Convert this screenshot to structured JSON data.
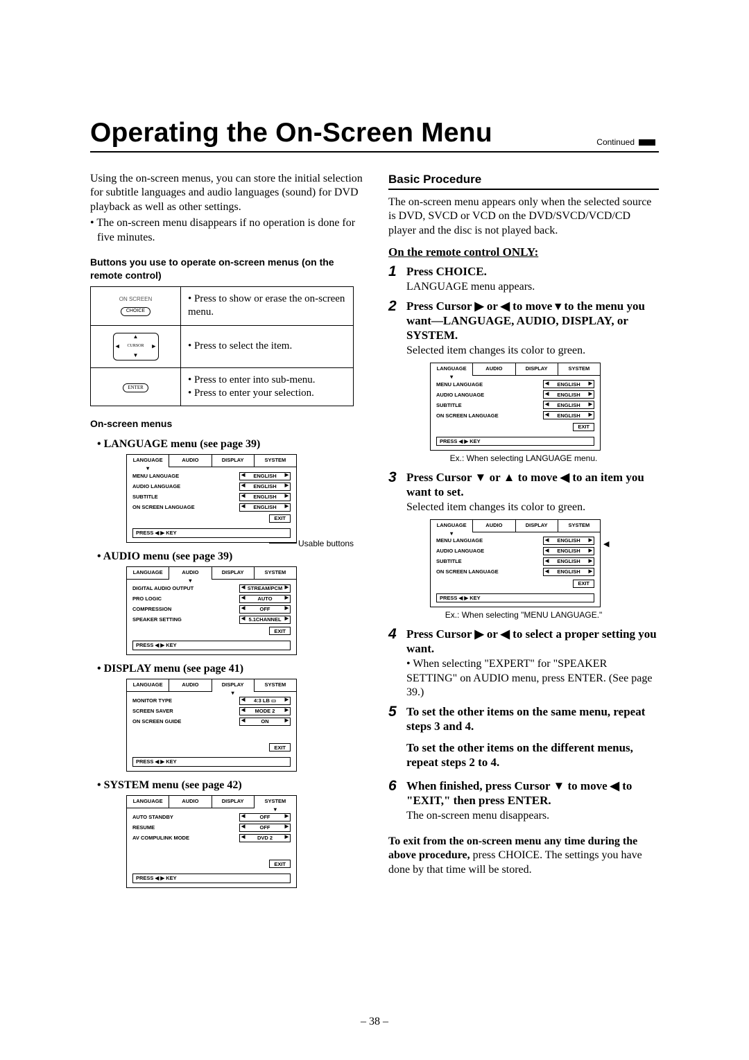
{
  "header": {
    "title": "Operating the On-Screen Menu",
    "continued": "Continued"
  },
  "intro": {
    "p1": "Using the on-screen menus, you can store the initial selection for subtitle languages and audio languages (sound) for DVD playback as well as other settings.",
    "b1": "• The on-screen menu disappears if no operation is done for five minutes."
  },
  "buttons_heading": "Buttons you use to operate on-screen menus (on the remote control)",
  "button_table": {
    "r1_label": "CHOICE",
    "r1_above": "ON SCREEN",
    "r1_b1": "• Press to show or erase the on-screen menu.",
    "r2_mid": "CURSOR",
    "r2_b1": "• Press to select the item.",
    "r3_label": "ENTER",
    "r3_b1": "• Press to enter into sub-menu.",
    "r3_b2": "• Press to enter your selection."
  },
  "menus_heading": "On-screen menus",
  "menus": {
    "lang_title": "•  LANGUAGE menu (see page 39)",
    "audio_title": "•  AUDIO menu (see page 39)",
    "display_title": "•  DISPLAY menu (see page 41)",
    "system_title": "•  SYSTEM menu (see page 42)",
    "usable_label": "Usable buttons",
    "tabs": {
      "t1": "LANGUAGE",
      "t2": "AUDIO",
      "t3": "DISPLAY",
      "t4": "SYSTEM"
    },
    "footer": "PRESS ◀ ▶ KEY",
    "exit": "EXIT",
    "lang_rows": [
      {
        "label": "MENU LANGUAGE",
        "value": "ENGLISH"
      },
      {
        "label": "AUDIO LANGUAGE",
        "value": "ENGLISH"
      },
      {
        "label": "SUBTITLE",
        "value": "ENGLISH"
      },
      {
        "label": "ON SCREEN LANGUAGE",
        "value": "ENGLISH"
      }
    ],
    "audio_rows": [
      {
        "label": "DIGITAL AUDIO OUTPUT",
        "value": "STREAM/PCM"
      },
      {
        "label": "PRO LOGIC",
        "value": "AUTO"
      },
      {
        "label": "COMPRESSION",
        "value": "OFF"
      },
      {
        "label": "SPEAKER SETTING",
        "value": "5.1CHANNEL"
      }
    ],
    "display_rows": [
      {
        "label": "MONITOR TYPE",
        "value": "4:3 LB ▭"
      },
      {
        "label": "SCREEN SAVER",
        "value": "MODE 2"
      },
      {
        "label": "ON SCREEN GUIDE",
        "value": "ON"
      }
    ],
    "system_rows": [
      {
        "label": "AUTO STANDBY",
        "value": "OFF"
      },
      {
        "label": "RESUME",
        "value": "OFF"
      },
      {
        "label": "AV COMPULINK MODE",
        "value": "DVD 2"
      }
    ]
  },
  "right": {
    "heading": "Basic Procedure",
    "intro": "The on-screen menu appears only when the selected source is DVD, SVCD or VCD on the DVD/SVCD/VCD/CD player and the disc is not played back.",
    "remote_only": "On the remote control ONLY:",
    "steps": {
      "s1_t": "Press CHOICE.",
      "s1_b": "LANGUAGE menu appears.",
      "s2_t": "Press Cursor ▶ or ◀ to move ▾ to the menu you want—LANGUAGE, AUDIO, DISPLAY, or SYSTEM.",
      "s2_b": "Selected item changes its color to green.",
      "s2_cap": "Ex.: When selecting LANGUAGE menu.",
      "s3_t": "Press Cursor ▼ or ▲ to move ◀ to an item you want to set.",
      "s3_b": "Selected item changes its color to green.",
      "s3_cap": "Ex.: When selecting \"MENU LANGUAGE.\"",
      "s4_t": "Press Cursor ▶ or ◀ to select a proper setting you want.",
      "s4_b": "• When selecting \"EXPERT\" for \"SPEAKER SETTING\" on AUDIO menu, press ENTER. (See page 39.)",
      "s5_t1": "To set the other items on the same menu, repeat steps 3 and 4.",
      "s5_t2": "To set the other items on the different menus, repeat steps 2 to 4.",
      "s6_t": "When finished, press Cursor ▼ to move ◀ to \"EXIT,\" then press ENTER.",
      "s6_b": "The on-screen menu disappears."
    },
    "exit_note_b": "To exit from the on-screen menu any time during the above procedure,",
    "exit_note": " press CHOICE. The settings you have done by that time will be stored."
  },
  "page_number": "– 38 –"
}
